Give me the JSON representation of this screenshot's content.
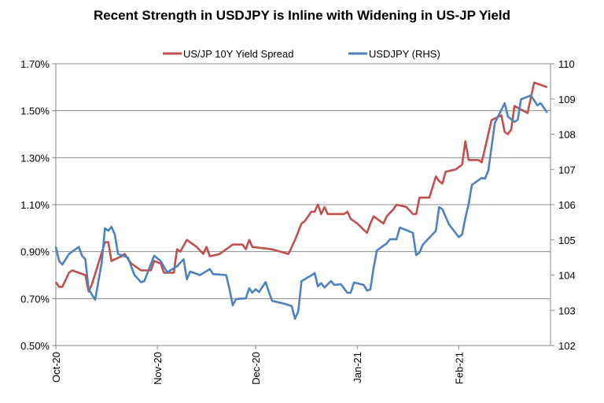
{
  "chart_data": {
    "type": "line",
    "title": "Recent Strength in USDJPY is Inline with Widening in US-JP Yield",
    "legend_position": "top",
    "grid": true,
    "x_range": [
      "2020-10-01",
      "2021-03-01"
    ],
    "x_ticks": [
      {
        "date": "2020-10-01",
        "label": "Oct-20"
      },
      {
        "date": "2020-11-01",
        "label": "Nov-20"
      },
      {
        "date": "2020-12-01",
        "label": "Dec-20"
      },
      {
        "date": "2021-01-01",
        "label": "Jan-21"
      },
      {
        "date": "2021-02-01",
        "label": "Feb-21"
      }
    ],
    "y_left": {
      "range": [
        0.5,
        1.7
      ],
      "ticks": [
        "0.50%",
        "0.70%",
        "0.90%",
        "1.10%",
        "1.30%",
        "1.50%",
        "1.70%"
      ],
      "tick_values": [
        0.5,
        0.7,
        0.9,
        1.1,
        1.3,
        1.5,
        1.7
      ]
    },
    "y_right": {
      "range": [
        102,
        110
      ],
      "ticks": [
        "102",
        "103",
        "104",
        "105",
        "106",
        "107",
        "108",
        "109",
        "110"
      ],
      "tick_values": [
        102,
        103,
        104,
        105,
        106,
        107,
        108,
        109,
        110
      ]
    },
    "series": [
      {
        "name": "US/JP 10Y Yield Spread",
        "axis": "left",
        "color": "#C0504D",
        "points": [
          [
            "2020-10-01",
            0.77
          ],
          [
            "2020-10-02",
            0.75
          ],
          [
            "2020-10-03",
            0.75
          ],
          [
            "2020-10-05",
            0.81
          ],
          [
            "2020-10-06",
            0.82
          ],
          [
            "2020-10-10",
            0.8
          ],
          [
            "2020-10-11",
            0.73
          ],
          [
            "2020-10-12",
            0.76
          ],
          [
            "2020-10-16",
            0.94
          ],
          [
            "2020-10-17",
            0.94
          ],
          [
            "2020-10-18",
            0.86
          ],
          [
            "2020-10-21",
            0.88
          ],
          [
            "2020-10-22",
            0.89
          ],
          [
            "2020-10-24",
            0.85
          ],
          [
            "2020-10-27",
            0.82
          ],
          [
            "2020-10-30",
            0.82
          ],
          [
            "2020-10-31",
            0.86
          ],
          [
            "2020-11-02",
            0.85
          ],
          [
            "2020-11-03",
            0.81
          ],
          [
            "2020-11-06",
            0.81
          ],
          [
            "2020-11-07",
            0.91
          ],
          [
            "2020-11-08",
            0.9
          ],
          [
            "2020-11-10",
            0.95
          ],
          [
            "2020-11-13",
            0.92
          ],
          [
            "2020-11-15",
            0.89
          ],
          [
            "2020-11-16",
            0.92
          ],
          [
            "2020-11-17",
            0.88
          ],
          [
            "2020-11-20",
            0.89
          ],
          [
            "2020-11-22",
            0.91
          ],
          [
            "2020-11-24",
            0.93
          ],
          [
            "2020-11-27",
            0.93
          ],
          [
            "2020-11-28",
            0.91
          ],
          [
            "2020-11-29",
            0.95
          ],
          [
            "2020-11-30",
            0.92
          ],
          [
            "2020-12-06",
            0.91
          ],
          [
            "2020-12-11",
            0.89
          ],
          [
            "2020-12-13",
            0.95
          ],
          [
            "2020-12-15",
            1.02
          ],
          [
            "2020-12-16",
            1.03
          ],
          [
            "2020-12-18",
            1.07
          ],
          [
            "2020-12-19",
            1.07
          ],
          [
            "2020-12-20",
            1.1
          ],
          [
            "2020-12-21",
            1.06
          ],
          [
            "2020-12-22",
            1.09
          ],
          [
            "2020-12-23",
            1.06
          ],
          [
            "2020-12-26",
            1.06
          ],
          [
            "2020-12-28",
            1.06
          ],
          [
            "2020-12-29",
            1.07
          ],
          [
            "2020-12-30",
            1.04
          ],
          [
            "2021-01-01",
            1.02
          ],
          [
            "2021-01-04",
            0.98
          ],
          [
            "2021-01-05",
            1.02
          ],
          [
            "2021-01-06",
            1.05
          ],
          [
            "2021-01-09",
            1.02
          ],
          [
            "2021-01-10",
            1.05
          ],
          [
            "2021-01-12",
            1.08
          ],
          [
            "2021-01-13",
            1.1
          ],
          [
            "2021-01-16",
            1.09
          ],
          [
            "2021-01-18",
            1.06
          ],
          [
            "2021-01-19",
            1.06
          ],
          [
            "2021-01-20",
            1.13
          ],
          [
            "2021-01-23",
            1.13
          ],
          [
            "2021-01-25",
            1.22
          ],
          [
            "2021-01-26",
            1.2
          ],
          [
            "2021-01-27",
            1.19
          ],
          [
            "2021-01-28",
            1.24
          ],
          [
            "2021-01-31",
            1.25
          ],
          [
            "2021-02-02",
            1.27
          ],
          [
            "2021-02-03",
            1.37
          ],
          [
            "2021-02-04",
            1.29
          ],
          [
            "2021-02-07",
            1.29
          ],
          [
            "2021-02-08",
            1.28
          ],
          [
            "2021-02-11",
            1.46
          ],
          [
            "2021-02-14",
            1.48
          ],
          [
            "2021-02-15",
            1.41
          ],
          [
            "2021-02-16",
            1.4
          ],
          [
            "2021-02-17",
            1.42
          ],
          [
            "2021-02-18",
            1.52
          ],
          [
            "2021-02-22",
            1.49
          ],
          [
            "2021-02-24",
            1.62
          ],
          [
            "2021-02-28",
            1.6
          ]
        ]
      },
      {
        "name": "USDJPY (RHS)",
        "axis": "right",
        "color": "#4F81BD",
        "points": [
          [
            "2020-10-01",
            104.8
          ],
          [
            "2020-10-02",
            104.4
          ],
          [
            "2020-10-03",
            104.3
          ],
          [
            "2020-10-05",
            104.6
          ],
          [
            "2020-10-08",
            104.8
          ],
          [
            "2020-10-09",
            104.55
          ],
          [
            "2020-10-10",
            104.45
          ],
          [
            "2020-10-11",
            103.6
          ],
          [
            "2020-10-13",
            103.3
          ],
          [
            "2020-10-15",
            104.35
          ],
          [
            "2020-10-16",
            105.33
          ],
          [
            "2020-10-17",
            105.26
          ],
          [
            "2020-10-18",
            105.37
          ],
          [
            "2020-10-19",
            105.15
          ],
          [
            "2020-10-20",
            104.6
          ],
          [
            "2020-10-23",
            104.5
          ],
          [
            "2020-10-25",
            104.0
          ],
          [
            "2020-10-27",
            103.8
          ],
          [
            "2020-10-28",
            103.83
          ],
          [
            "2020-10-31",
            104.55
          ],
          [
            "2020-11-02",
            104.4
          ],
          [
            "2020-11-04",
            104.08
          ],
          [
            "2020-11-07",
            104.25
          ],
          [
            "2020-11-09",
            104.45
          ],
          [
            "2020-11-10",
            103.88
          ],
          [
            "2020-11-11",
            104.1
          ],
          [
            "2020-11-14",
            104.0
          ],
          [
            "2020-11-17",
            104.17
          ],
          [
            "2020-11-18",
            104.03
          ],
          [
            "2020-11-22",
            104.0
          ],
          [
            "2020-11-23",
            103.6
          ],
          [
            "2020-11-24",
            103.14
          ],
          [
            "2020-11-25",
            103.32
          ],
          [
            "2020-11-28",
            103.34
          ],
          [
            "2020-11-29",
            103.63
          ],
          [
            "2020-11-30",
            103.5
          ],
          [
            "2020-12-01",
            103.6
          ],
          [
            "2020-12-02",
            103.52
          ],
          [
            "2020-12-04",
            103.8
          ],
          [
            "2020-12-06",
            103.27
          ],
          [
            "2020-12-10",
            103.18
          ],
          [
            "2020-12-12",
            103.12
          ],
          [
            "2020-12-13",
            102.76
          ],
          [
            "2020-12-14",
            102.98
          ],
          [
            "2020-12-15",
            103.83
          ],
          [
            "2020-12-18",
            103.99
          ],
          [
            "2020-12-19",
            104.06
          ],
          [
            "2020-12-20",
            103.68
          ],
          [
            "2020-12-21",
            103.77
          ],
          [
            "2020-12-22",
            103.65
          ],
          [
            "2020-12-24",
            103.83
          ],
          [
            "2020-12-25",
            103.72
          ],
          [
            "2020-12-27",
            103.74
          ],
          [
            "2020-12-29",
            103.5
          ],
          [
            "2020-12-30",
            103.5
          ],
          [
            "2020-12-31",
            103.79
          ],
          [
            "2021-01-03",
            103.72
          ],
          [
            "2021-01-04",
            103.56
          ],
          [
            "2021-01-05",
            103.59
          ],
          [
            "2021-01-06",
            104.21
          ],
          [
            "2021-01-07",
            104.7
          ],
          [
            "2021-01-10",
            104.9
          ],
          [
            "2021-01-11",
            105.02
          ],
          [
            "2021-01-13",
            105.02
          ],
          [
            "2021-01-14",
            105.35
          ],
          [
            "2021-01-18",
            105.2
          ],
          [
            "2021-01-19",
            104.57
          ],
          [
            "2021-01-20",
            104.64
          ],
          [
            "2021-01-21",
            104.86
          ],
          [
            "2021-01-25",
            105.26
          ],
          [
            "2021-01-26",
            105.93
          ],
          [
            "2021-01-27",
            105.87
          ],
          [
            "2021-01-29",
            105.44
          ],
          [
            "2021-02-01",
            105.08
          ],
          [
            "2021-02-02",
            105.15
          ],
          [
            "2021-02-03",
            105.62
          ],
          [
            "2021-02-04",
            106.02
          ],
          [
            "2021-02-05",
            106.56
          ],
          [
            "2021-02-08",
            106.76
          ],
          [
            "2021-02-09",
            106.74
          ],
          [
            "2021-02-10",
            106.96
          ],
          [
            "2021-02-12",
            108.32
          ],
          [
            "2021-02-15",
            108.88
          ],
          [
            "2021-02-16",
            108.5
          ],
          [
            "2021-02-18",
            108.35
          ],
          [
            "2021-02-19",
            108.41
          ],
          [
            "2021-02-20",
            108.99
          ],
          [
            "2021-02-23",
            109.1
          ],
          [
            "2021-02-25",
            108.82
          ],
          [
            "2021-02-26",
            108.88
          ],
          [
            "2021-02-28",
            108.61
          ]
        ]
      }
    ]
  }
}
